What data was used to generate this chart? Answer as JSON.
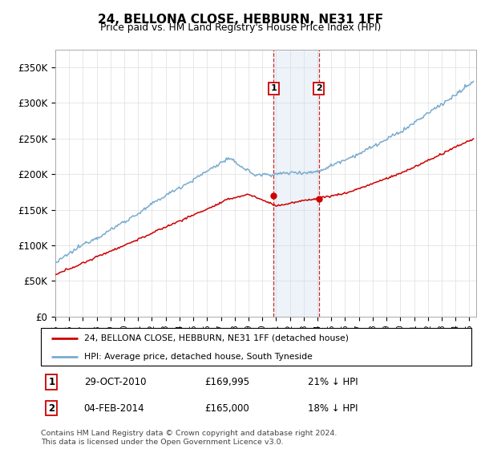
{
  "title": "24, BELLONA CLOSE, HEBBURN, NE31 1FF",
  "subtitle": "Price paid vs. HM Land Registry's House Price Index (HPI)",
  "ylabel_ticks": [
    "£0",
    "£50K",
    "£100K",
    "£150K",
    "£200K",
    "£250K",
    "£300K",
    "£350K"
  ],
  "ytick_values": [
    0,
    50000,
    100000,
    150000,
    200000,
    250000,
    300000,
    350000
  ],
  "ylim": [
    0,
    375000
  ],
  "xlim_start": 1995.0,
  "xlim_end": 2025.5,
  "hpi_color": "#7aabcf",
  "price_color": "#cc0000",
  "sale1_x": 2010.83,
  "sale1_y": 169995,
  "sale2_x": 2014.09,
  "sale2_y": 165000,
  "sale1_label": "29-OCT-2010",
  "sale1_price": "£169,995",
  "sale1_note": "21% ↓ HPI",
  "sale2_label": "04-FEB-2014",
  "sale2_price": "£165,000",
  "sale2_note": "18% ↓ HPI",
  "legend_line1": "24, BELLONA CLOSE, HEBBURN, NE31 1FF (detached house)",
  "legend_line2": "HPI: Average price, detached house, South Tyneside",
  "footnote": "Contains HM Land Registry data © Crown copyright and database right 2024.\nThis data is licensed under the Open Government Licence v3.0.",
  "shaded_region_color": "#ccdded",
  "grid_color": "#dddddd"
}
